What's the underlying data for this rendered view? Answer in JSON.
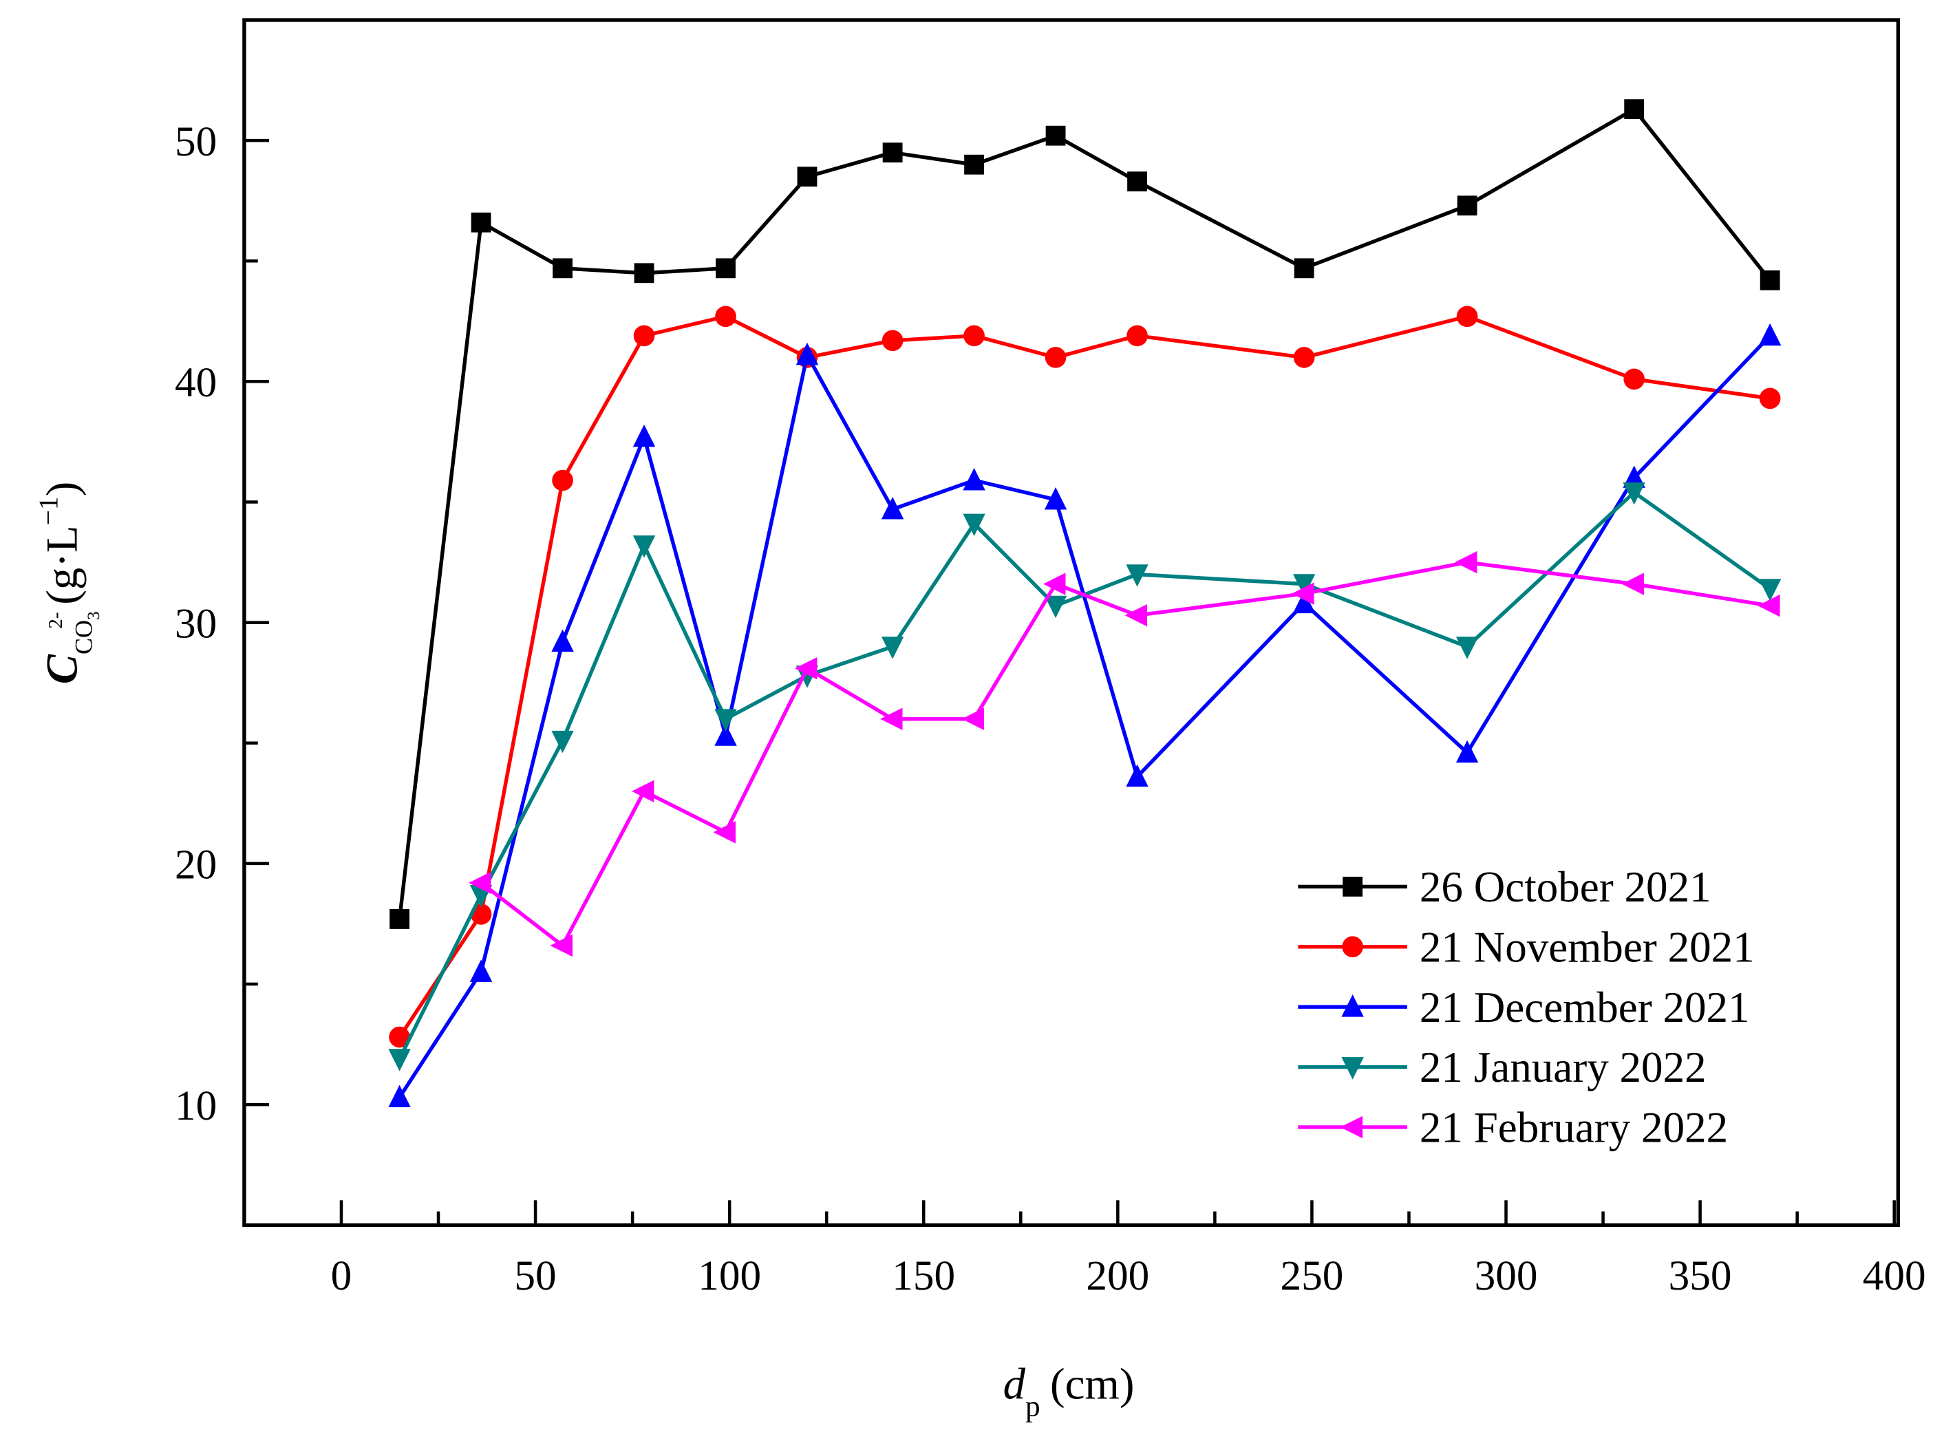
{
  "chart_data": {
    "type": "line",
    "title": "",
    "xlabel": {
      "main": "d",
      "sub": "p",
      "unit": "(cm)"
    },
    "ylabel": {
      "main": "C",
      "sub": "CO",
      "sub2": "3",
      "sup": "2-",
      "unit_open": "(g·L",
      "unit_sup": "−1",
      "unit_close": ")"
    },
    "xlim": [
      -25,
      401
    ],
    "ylim": [
      5,
      55
    ],
    "xticks": [
      0,
      50,
      100,
      150,
      200,
      250,
      300,
      350,
      400
    ],
    "yticks": [
      10,
      20,
      30,
      40,
      50
    ],
    "grid": false,
    "legend_position": "bottom-right",
    "series": [
      {
        "name": "26 October 2021",
        "color": "#000000",
        "marker": "square",
        "x": [
          15,
          36,
          57,
          78,
          99,
          120,
          142,
          163,
          184,
          205,
          248,
          290,
          333,
          368
        ],
        "y": [
          17.7,
          46.6,
          44.7,
          44.5,
          44.7,
          48.5,
          49.5,
          49.0,
          50.2,
          48.3,
          44.7,
          47.3,
          51.3,
          44.2
        ]
      },
      {
        "name": "21 November 2021",
        "color": "#ff0000",
        "marker": "circle",
        "x": [
          15,
          36,
          57,
          78,
          99,
          120,
          142,
          163,
          184,
          205,
          248,
          290,
          333,
          368
        ],
        "y": [
          12.8,
          17.9,
          35.9,
          41.9,
          42.7,
          41.0,
          41.7,
          41.9,
          41.0,
          41.9,
          41.0,
          42.7,
          40.1,
          39.3
        ]
      },
      {
        "name": "21 December 2021",
        "color": "#0000ff",
        "marker": "triangle-up",
        "x": [
          15,
          36,
          57,
          78,
          99,
          120,
          142,
          163,
          184,
          205,
          248,
          290,
          333,
          368
        ],
        "y": [
          10.3,
          15.5,
          29.2,
          37.7,
          25.3,
          41.1,
          34.7,
          35.9,
          35.1,
          23.6,
          30.8,
          24.6,
          36.0,
          41.9
        ]
      },
      {
        "name": "21 January 2022",
        "color": "#008080",
        "marker": "triangle-down",
        "x": [
          15,
          36,
          57,
          78,
          99,
          120,
          142,
          163,
          184,
          205,
          248,
          290,
          333,
          368
        ],
        "y": [
          11.9,
          18.7,
          25.1,
          33.2,
          26.0,
          27.8,
          29.0,
          34.1,
          30.7,
          32.0,
          31.6,
          29.0,
          35.4,
          31.4
        ]
      },
      {
        "name": "21 February 2022",
        "color": "#ff00ff",
        "marker": "triangle-left",
        "x": [
          36,
          57,
          78,
          99,
          120,
          142,
          163,
          184,
          205,
          248,
          290,
          333,
          368
        ],
        "y": [
          19.2,
          16.6,
          23.0,
          21.3,
          28.1,
          26.0,
          26.0,
          31.6,
          30.3,
          31.2,
          32.5,
          31.6,
          30.7
        ]
      }
    ]
  }
}
